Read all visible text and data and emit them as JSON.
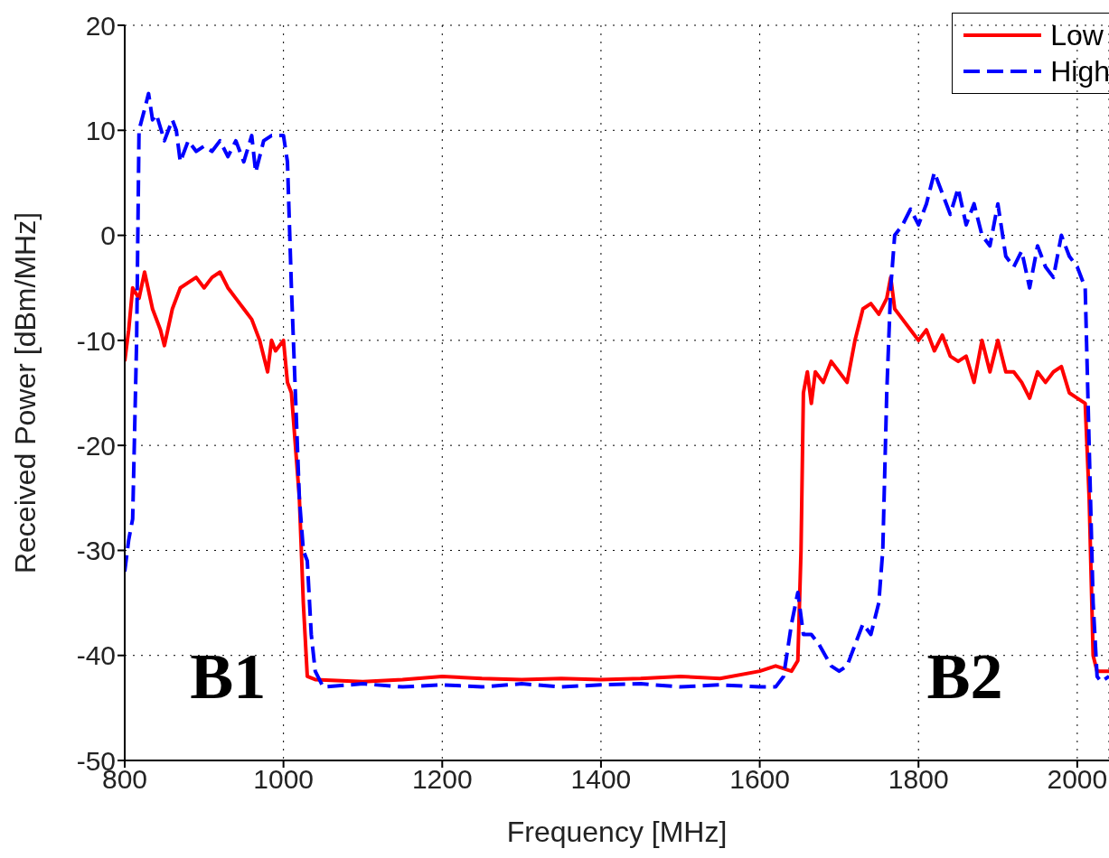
{
  "chart_data": {
    "type": "line",
    "xlabel": "Frequency [MHz]",
    "ylabel": "Received Power [dBm/MHz]",
    "xlim": [
      800,
      2040
    ],
    "xticks": [
      800,
      1000,
      1200,
      1400,
      1600,
      1800,
      2000
    ],
    "ylim": [
      -50,
      20
    ],
    "yticks": [
      -50,
      -40,
      -30,
      -20,
      -10,
      0,
      10,
      20
    ],
    "grid": true,
    "legend": "top right",
    "marker": "none",
    "annotations": [
      "B1",
      "B2"
    ],
    "series": [
      {
        "name": "Low",
        "color": "#ff0000",
        "line_style": "solid",
        "x": [
          800,
          805,
          810,
          818,
          825,
          835,
          845,
          850,
          860,
          870,
          880,
          890,
          900,
          910,
          920,
          930,
          940,
          950,
          960,
          970,
          980,
          985,
          990,
          1000,
          1005,
          1010,
          1015,
          1020,
          1025,
          1030,
          1040,
          1100,
          1150,
          1200,
          1250,
          1300,
          1350,
          1400,
          1450,
          1500,
          1550,
          1600,
          1620,
          1640,
          1648,
          1652,
          1655,
          1660,
          1665,
          1670,
          1680,
          1690,
          1700,
          1710,
          1720,
          1730,
          1740,
          1750,
          1760,
          1765,
          1770,
          1780,
          1790,
          1800,
          1810,
          1820,
          1830,
          1840,
          1850,
          1860,
          1870,
          1880,
          1890,
          1900,
          1910,
          1920,
          1930,
          1940,
          1950,
          1960,
          1970,
          1980,
          1990,
          2000,
          2010,
          2015,
          2020,
          2025,
          2040
        ],
        "values": [
          -12,
          -9,
          -5,
          -6,
          -3.5,
          -7,
          -9,
          -10.5,
          -7,
          -5,
          -4.5,
          -4,
          -5,
          -4,
          -3.5,
          -5,
          -6,
          -7,
          -8,
          -10,
          -13,
          -10,
          -11,
          -10,
          -14,
          -15,
          -20,
          -25,
          -35,
          -42,
          -42.3,
          -42.5,
          -42.3,
          -42,
          -42.2,
          -42.3,
          -42.2,
          -42.3,
          -42.2,
          -42,
          -42.2,
          -41.5,
          -41,
          -41.5,
          -40.5,
          -30,
          -15,
          -13,
          -16,
          -13,
          -14,
          -12,
          -13,
          -14,
          -10,
          -7,
          -6.5,
          -7.5,
          -6,
          -4,
          -7,
          -8,
          -9,
          -10,
          -9,
          -11,
          -9.5,
          -11.5,
          -12,
          -11.5,
          -14,
          -10,
          -13,
          -10,
          -13,
          -13,
          -14,
          -15.5,
          -13,
          -14,
          -13,
          -12.5,
          -15,
          -15.5,
          -16,
          -25,
          -40,
          -41.5,
          -41.5
        ]
      },
      {
        "name": "High",
        "color": "#0000ff",
        "line_style": "dashed",
        "x": [
          800,
          805,
          810,
          815,
          818,
          825,
          830,
          835,
          840,
          850,
          860,
          865,
          870,
          880,
          890,
          900,
          910,
          920,
          930,
          940,
          950,
          960,
          965,
          975,
          985,
          1000,
          1005,
          1010,
          1015,
          1020,
          1025,
          1030,
          1035,
          1040,
          1050,
          1100,
          1150,
          1200,
          1250,
          1300,
          1350,
          1400,
          1450,
          1500,
          1550,
          1600,
          1620,
          1630,
          1640,
          1648,
          1655,
          1665,
          1675,
          1690,
          1700,
          1710,
          1720,
          1730,
          1740,
          1750,
          1755,
          1760,
          1765,
          1770,
          1780,
          1790,
          1800,
          1810,
          1820,
          1830,
          1840,
          1850,
          1860,
          1870,
          1880,
          1890,
          1900,
          1910,
          1920,
          1930,
          1940,
          1950,
          1960,
          1970,
          1980,
          1990,
          2000,
          2010,
          2015,
          2020,
          2025,
          2030,
          2040
        ],
        "values": [
          -32,
          -29,
          -27,
          -10,
          10,
          12,
          13.5,
          11,
          11.5,
          9,
          11,
          10,
          7,
          9,
          8,
          8.5,
          8,
          9,
          7.5,
          9,
          7,
          9.5,
          6,
          9,
          9.5,
          9.5,
          7,
          -5,
          -15,
          -25,
          -30,
          -31,
          -38,
          -41.5,
          -43,
          -42.7,
          -43,
          -42.8,
          -43,
          -42.7,
          -43,
          -42.8,
          -42.7,
          -43,
          -42.8,
          -43,
          -43,
          -42,
          -37,
          -34,
          -38,
          -38,
          -39,
          -41,
          -41.5,
          -41,
          -39,
          -37,
          -38,
          -35,
          -30,
          -15,
          -5,
          0,
          1,
          2.5,
          1,
          3,
          6,
          4,
          2,
          4.5,
          1,
          3,
          0,
          -1,
          3,
          -2,
          -3,
          -1.5,
          -5,
          -1,
          -3,
          -4,
          0,
          -2,
          -3,
          -5,
          -20,
          -35,
          -42,
          -42.5,
          -42
        ]
      }
    ]
  }
}
